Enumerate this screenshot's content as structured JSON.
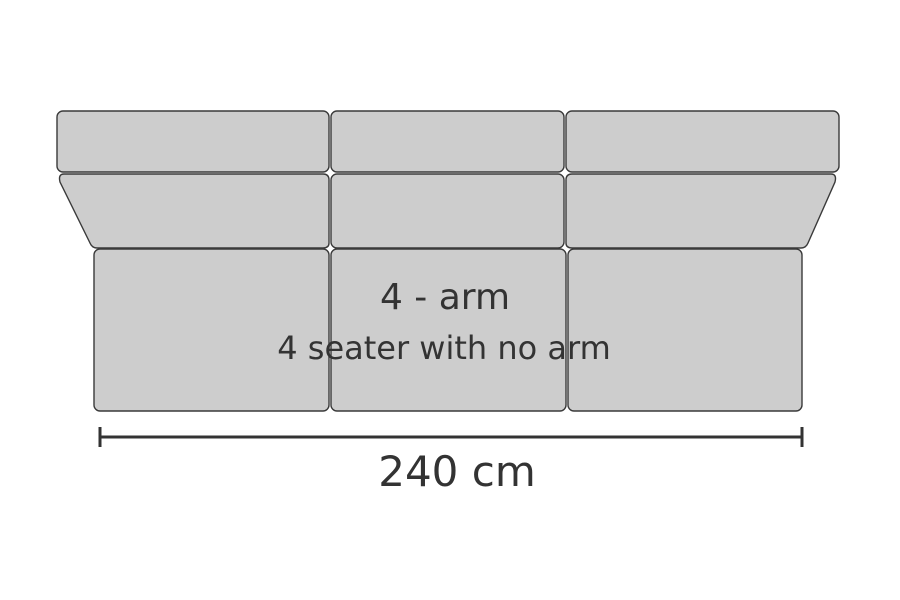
{
  "diagram": {
    "model_label": "4 - arm",
    "description": "4 seater with no arm",
    "width_label": "240 cm"
  },
  "colors": {
    "cushion_fill": "#cdcdcd",
    "outline": "#3a3a3a",
    "text": "#333333"
  }
}
